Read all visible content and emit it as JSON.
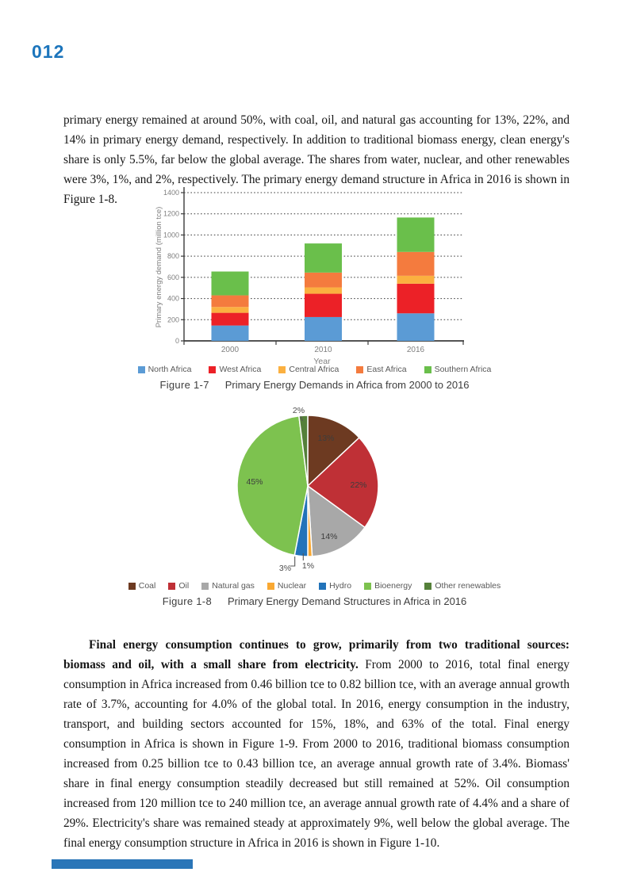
{
  "page": {
    "number": "012",
    "accent_color": "#1c75bc",
    "footer_bar_color": "#2a76b8"
  },
  "paragraphs": {
    "p1": "primary energy remained at around 50%, with coal, oil, and natural gas accounting for 13%, 22%, and 14% in primary energy demand, respectively. In addition to traditional biomass energy, clean energy's share is only 5.5%, far below the global average. The shares from water, nuclear, and other renewables were 3%, 1%, and 2%, respectively. The primary energy demand structure in Africa in 2016 is shown in Figure 1-8.",
    "p2_bold": "Final energy consumption continues to grow, primarily from two traditional sources: biomass and oil, with a small share from electricity.",
    "p2_rest": " From 2000 to 2016, total final energy consumption in Africa increased from 0.46 billion tce to 0.82 billion tce, with an average annual growth rate of 3.7%, accounting for 4.0% of the global total. In 2016, energy consumption in the industry, transport, and building sectors accounted for 15%, 18%, and 63% of the total. Final energy consumption in Africa is shown in Figure 1-9. From 2000 to 2016, traditional biomass consumption increased from 0.25 billion tce to 0.43 billion tce, an average annual growth rate of 3.4%. Biomass' share in final energy consumption steadily decreased but still remained at 52%. Oil consumption increased from 120 million tce to 240 million tce, an average annual growth rate of 4.4% and a share of 29%. Electricity's share was remained steady at approximately 9%, well below the global average. The final energy consumption structure in Africa in 2016 is shown in Figure 1-10."
  },
  "figures": {
    "fig7": {
      "label": "Figure 1-7",
      "title": "Primary Energy Demands in Africa from 2000 to 2016"
    },
    "fig8": {
      "label": "Figure 1-8",
      "title": "Primary Energy Demand Structures in Africa in 2016"
    }
  },
  "chart_data": [
    {
      "type": "bar",
      "stacked": true,
      "title": "Primary Energy Demands in Africa from 2000 to 2016",
      "categories": [
        "2000",
        "2010",
        "2016"
      ],
      "series": [
        {
          "name": "North Africa",
          "color": "#5b9bd5",
          "values": [
            145,
            225,
            260
          ]
        },
        {
          "name": "West Africa",
          "color": "#ec2127",
          "values": [
            120,
            220,
            280
          ]
        },
        {
          "name": "Central Africa",
          "color": "#fbb040",
          "values": [
            55,
            60,
            75
          ]
        },
        {
          "name": "East Africa",
          "color": "#f47b3e",
          "values": [
            110,
            140,
            225
          ]
        },
        {
          "name": "Southern Africa",
          "color": "#6abf4b",
          "values": [
            225,
            275,
            325
          ]
        }
      ],
      "totals": [
        655,
        920,
        1165
      ],
      "xlabel": "Year",
      "ylabel": "Primary energy demand (million tce)",
      "ylim": [
        0,
        1400
      ],
      "ytick_step": 200,
      "grid": "dotted-horizontal",
      "legend_position": "bottom"
    },
    {
      "type": "pie",
      "title": "Primary Energy Demand Structures in Africa in 2016",
      "labels": [
        "Coal",
        "Oil",
        "Natural gas",
        "Nuclear",
        "Hydro",
        "Bioenergy",
        "Other renewables"
      ],
      "values": [
        13,
        22,
        14,
        1,
        3,
        45,
        2
      ],
      "value_labels": [
        "13%",
        "22%",
        "14%",
        "1%",
        "3%",
        "45%",
        "2%"
      ],
      "colors": [
        "#6d3a21",
        "#bf3036",
        "#a8a8a8",
        "#f9a832",
        "#2273b9",
        "#7dc24f",
        "#55803a"
      ],
      "start_angle": "top",
      "direction": "clockwise",
      "legend_position": "bottom"
    }
  ]
}
